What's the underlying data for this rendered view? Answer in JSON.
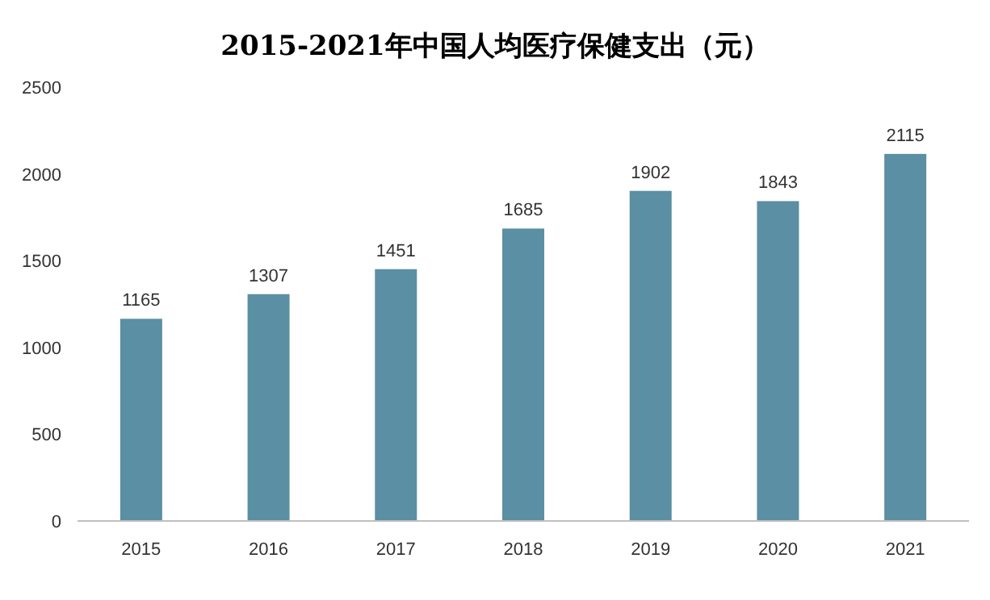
{
  "chart_data": {
    "type": "bar",
    "title": "2015-2021年中国人均医疗保健支出（元）",
    "categories": [
      "2015",
      "2016",
      "2017",
      "2018",
      "2019",
      "2020",
      "2021"
    ],
    "values": [
      1165,
      1307,
      1451,
      1685,
      1902,
      1843,
      2115
    ],
    "color": "#5b8fa3",
    "ylim": [
      0,
      2500
    ],
    "yticks": [
      0,
      500,
      1000,
      1500,
      2000,
      2500
    ],
    "data_labels": true
  }
}
